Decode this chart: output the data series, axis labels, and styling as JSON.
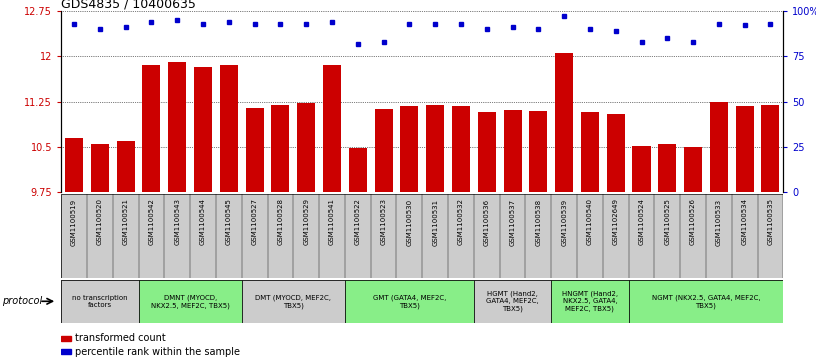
{
  "title": "GDS4835 / 10400635",
  "ylim": [
    9.75,
    12.75
  ],
  "yticks": [
    9.75,
    10.5,
    11.25,
    12.0,
    12.75
  ],
  "ytick_labels": [
    "9.75",
    "10.5",
    "11.25",
    "12",
    "12.75"
  ],
  "y2lim": [
    0,
    100
  ],
  "y2ticks": [
    0,
    25,
    50,
    75,
    100
  ],
  "y2tick_labels": [
    "0",
    "25",
    "50",
    "75",
    "100%"
  ],
  "bar_color": "#cc0000",
  "dot_color": "#0000cc",
  "samples": [
    "GSM1100519",
    "GSM1100520",
    "GSM1100521",
    "GSM1100542",
    "GSM1100543",
    "GSM1100544",
    "GSM1100545",
    "GSM1100527",
    "GSM1100528",
    "GSM1100529",
    "GSM1100541",
    "GSM1100522",
    "GSM1100523",
    "GSM1100530",
    "GSM1100531",
    "GSM1100532",
    "GSM1100536",
    "GSM1100537",
    "GSM1100538",
    "GSM1100539",
    "GSM1100540",
    "GSM1102649",
    "GSM1100524",
    "GSM1100525",
    "GSM1100526",
    "GSM1100533",
    "GSM1100534",
    "GSM1100535"
  ],
  "bar_values": [
    10.65,
    10.55,
    10.6,
    11.85,
    11.9,
    11.82,
    11.85,
    11.15,
    11.2,
    11.22,
    11.85,
    10.48,
    11.13,
    11.18,
    11.2,
    11.17,
    11.08,
    11.12,
    11.1,
    12.05,
    11.08,
    11.05,
    10.52,
    10.55,
    10.5,
    11.25,
    11.18,
    11.2
  ],
  "dot_values_pct": [
    93,
    90,
    91,
    94,
    95,
    93,
    94,
    93,
    93,
    93,
    94,
    82,
    83,
    93,
    93,
    93,
    90,
    91,
    90,
    97,
    90,
    89,
    83,
    85,
    83,
    93,
    92,
    93
  ],
  "protocols": [
    {
      "label": "no transcription\nfactors",
      "start": 0,
      "end": 3,
      "color": "#cccccc"
    },
    {
      "label": "DMNT (MYOCD,\nNKX2.5, MEF2C, TBX5)",
      "start": 3,
      "end": 7,
      "color": "#88ee88"
    },
    {
      "label": "DMT (MYOCD, MEF2C,\nTBX5)",
      "start": 7,
      "end": 11,
      "color": "#cccccc"
    },
    {
      "label": "GMT (GATA4, MEF2C,\nTBX5)",
      "start": 11,
      "end": 16,
      "color": "#88ee88"
    },
    {
      "label": "HGMT (Hand2,\nGATA4, MEF2C,\nTBX5)",
      "start": 16,
      "end": 19,
      "color": "#cccccc"
    },
    {
      "label": "HNGMT (Hand2,\nNKX2.5, GATA4,\nMEF2C, TBX5)",
      "start": 19,
      "end": 22,
      "color": "#88ee88"
    },
    {
      "label": "NGMT (NKX2.5, GATA4, MEF2C,\nTBX5)",
      "start": 22,
      "end": 28,
      "color": "#88ee88"
    }
  ]
}
